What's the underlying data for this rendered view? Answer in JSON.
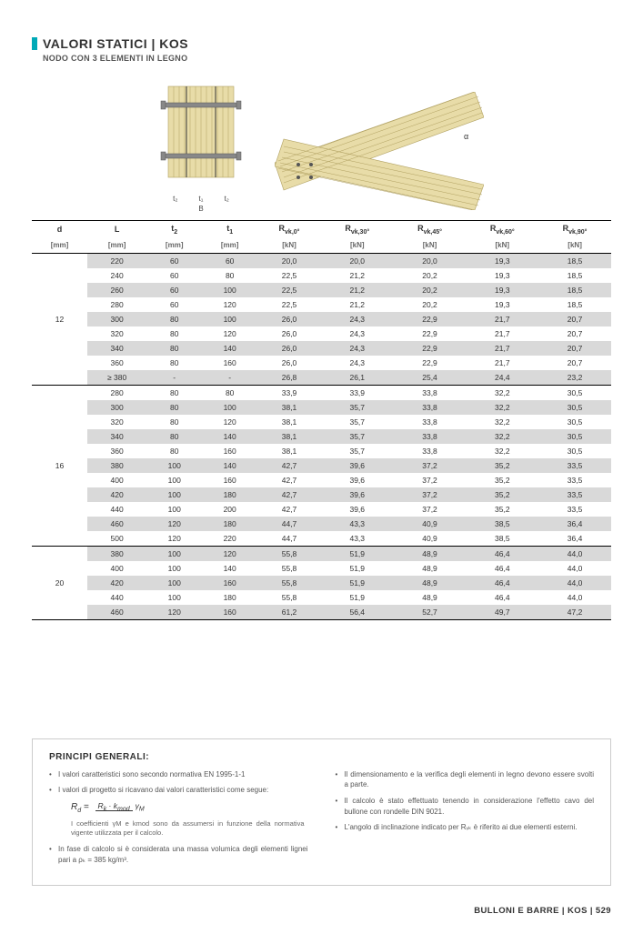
{
  "header": {
    "title": "VALORI STATICI | KOS",
    "subtitle": "NODO CON 3 ELEMENTI IN LEGNO"
  },
  "diagram_labels": {
    "t2": "t₂",
    "t1": "t₁",
    "t2b": "t₂",
    "B": "B",
    "alpha": "α"
  },
  "columns": {
    "headers": [
      "d",
      "L",
      "t₂",
      "t₁",
      "R_vk,0°",
      "R_vk,30°",
      "R_vk,45°",
      "R_vk,60°",
      "R_vk,90°"
    ],
    "units": [
      "[mm]",
      "[mm]",
      "[mm]",
      "[mm]",
      "[kN]",
      "[kN]",
      "[kN]",
      "[kN]",
      "[kN]"
    ]
  },
  "groups": [
    {
      "d": "12",
      "rows": [
        [
          "220",
          "60",
          "60",
          "20,0",
          "20,0",
          "20,0",
          "19,3",
          "18,5"
        ],
        [
          "240",
          "60",
          "80",
          "22,5",
          "21,2",
          "20,2",
          "19,3",
          "18,5"
        ],
        [
          "260",
          "60",
          "100",
          "22,5",
          "21,2",
          "20,2",
          "19,3",
          "18,5"
        ],
        [
          "280",
          "60",
          "120",
          "22,5",
          "21,2",
          "20,2",
          "19,3",
          "18,5"
        ],
        [
          "300",
          "80",
          "100",
          "26,0",
          "24,3",
          "22,9",
          "21,7",
          "20,7"
        ],
        [
          "320",
          "80",
          "120",
          "26,0",
          "24,3",
          "22,9",
          "21,7",
          "20,7"
        ],
        [
          "340",
          "80",
          "140",
          "26,0",
          "24,3",
          "22,9",
          "21,7",
          "20,7"
        ],
        [
          "360",
          "80",
          "160",
          "26,0",
          "24,3",
          "22,9",
          "21,7",
          "20,7"
        ],
        [
          "≥ 380",
          "-",
          "-",
          "26,8",
          "26,1",
          "25,4",
          "24,4",
          "23,2"
        ]
      ]
    },
    {
      "d": "16",
      "rows": [
        [
          "280",
          "80",
          "80",
          "33,9",
          "33,9",
          "33,8",
          "32,2",
          "30,5"
        ],
        [
          "300",
          "80",
          "100",
          "38,1",
          "35,7",
          "33,8",
          "32,2",
          "30,5"
        ],
        [
          "320",
          "80",
          "120",
          "38,1",
          "35,7",
          "33,8",
          "32,2",
          "30,5"
        ],
        [
          "340",
          "80",
          "140",
          "38,1",
          "35,7",
          "33,8",
          "32,2",
          "30,5"
        ],
        [
          "360",
          "80",
          "160",
          "38,1",
          "35,7",
          "33,8",
          "32,2",
          "30,5"
        ],
        [
          "380",
          "100",
          "140",
          "42,7",
          "39,6",
          "37,2",
          "35,2",
          "33,5"
        ],
        [
          "400",
          "100",
          "160",
          "42,7",
          "39,6",
          "37,2",
          "35,2",
          "33,5"
        ],
        [
          "420",
          "100",
          "180",
          "42,7",
          "39,6",
          "37,2",
          "35,2",
          "33,5"
        ],
        [
          "440",
          "100",
          "200",
          "42,7",
          "39,6",
          "37,2",
          "35,2",
          "33,5"
        ],
        [
          "460",
          "120",
          "180",
          "44,7",
          "43,3",
          "40,9",
          "38,5",
          "36,4"
        ],
        [
          "500",
          "120",
          "220",
          "44,7",
          "43,3",
          "40,9",
          "38,5",
          "36,4"
        ]
      ]
    },
    {
      "d": "20",
      "rows": [
        [
          "380",
          "100",
          "120",
          "55,8",
          "51,9",
          "48,9",
          "46,4",
          "44,0"
        ],
        [
          "400",
          "100",
          "140",
          "55,8",
          "51,9",
          "48,9",
          "46,4",
          "44,0"
        ],
        [
          "420",
          "100",
          "160",
          "55,8",
          "51,9",
          "48,9",
          "46,4",
          "44,0"
        ],
        [
          "440",
          "100",
          "180",
          "55,8",
          "51,9",
          "48,9",
          "46,4",
          "44,0"
        ],
        [
          "460",
          "120",
          "160",
          "61,2",
          "56,4",
          "52,7",
          "49,7",
          "47,2"
        ]
      ]
    }
  ],
  "principles": {
    "title": "PRINCIPI GENERALI:",
    "left": [
      "I valori caratteristici sono secondo normativa EN 1995-1-1",
      "I valori di progetto si ricavano dai valori caratteristici come segue:",
      "In fase di calcolo si è considerata una massa volumica degli elementi lignei pari a ρₖ = 385 kg/m³."
    ],
    "formula_note": "I coefficienti γM e kmod sono da assumersi in funzione della normativa vigente utilizzata per il calcolo.",
    "right": [
      "Il dimensionamento e la verifica degli elementi in legno devono essere svolti a parte.",
      "Il calcolo è stato effettuato tenendo in considerazione l'effetto cavo del bullone con rondelle DIN 9021.",
      "L'angolo di inclinazione indicato per Rᵥₖ è riferito ai due elementi esterni."
    ]
  },
  "footer": "BULLONI E BARRE | KOS | 529",
  "colors": {
    "accent": "#00a9b7",
    "row_odd": "#d9d9d9",
    "wood_fill": "#e8dca8",
    "wood_stroke": "#b0a060"
  }
}
